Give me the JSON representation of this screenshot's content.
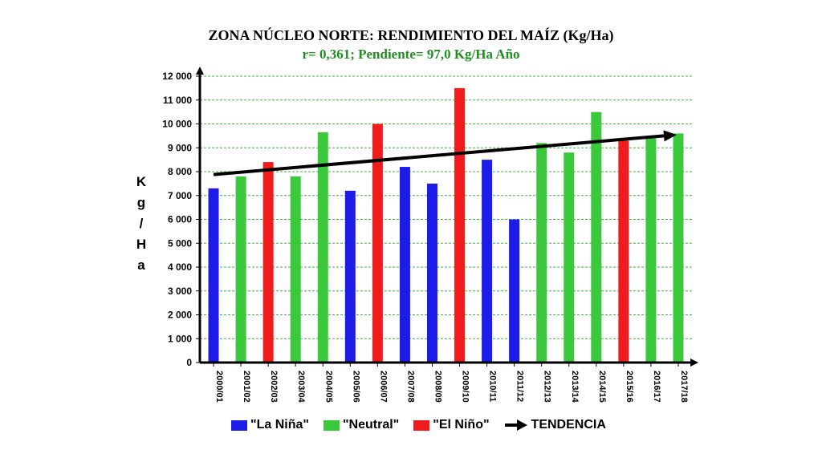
{
  "title": "ZONA NÚCLEO NORTE: RENDIMIENTO DEL MAÍZ  (Kg/Ha)",
  "subtitle": "r= 0,361; Pendiente= 97,0 Kg/Ha Año",
  "chart_data": {
    "type": "bar",
    "title": "ZONA NÚCLEO NORTE: RENDIMIENTO DEL MAÍZ  (Kg/Ha)",
    "subtitle": "r= 0,361; Pendiente= 97,0 Kg/Ha Año",
    "ylabel": "Kg/Ha",
    "ylabel_chars": [
      "K",
      "g",
      "/",
      "H",
      "a"
    ],
    "ylim": [
      0,
      12000
    ],
    "yticks": [
      0,
      1000,
      2000,
      3000,
      4000,
      5000,
      6000,
      7000,
      8000,
      9000,
      10000,
      11000,
      12000
    ],
    "ytick_labels": [
      "0",
      "1 000",
      "2 000",
      "3 000",
      "4 000",
      "5 000",
      "6 000",
      "7 000",
      "8 000",
      "9 000",
      "10 000",
      "11 000",
      "12 000"
    ],
    "grid": true,
    "categories": [
      "2000/01",
      "2001/02",
      "2002/03",
      "2003/04",
      "2004/05",
      "2005/06",
      "2006/07",
      "2007/08",
      "2008/09",
      "2009/10",
      "2010/11",
      "2011/12",
      "2012/13",
      "2013/14",
      "2014/15",
      "2015/16",
      "2016/17",
      "2017/18"
    ],
    "values": [
      7300,
      7800,
      8400,
      7800,
      9650,
      7200,
      10000,
      8200,
      7500,
      11500,
      8500,
      6000,
      9200,
      8800,
      10500,
      9300,
      9400,
      9600
    ],
    "phase": [
      "La Niña",
      "Neutral",
      "El Niño",
      "Neutral",
      "Neutral",
      "La Niña",
      "El Niño",
      "La Niña",
      "La Niña",
      "El Niño",
      "La Niña",
      "La Niña",
      "Neutral",
      "Neutral",
      "Neutral",
      "El Niño",
      "Neutral",
      "Neutral"
    ],
    "phase_colors": {
      "La Niña": "#1c1ce6",
      "Neutral": "#3cc83c",
      "El Niño": "#ee1c1c"
    },
    "trend": {
      "label": "TENDENCIA",
      "start": 7880,
      "end": 9530
    },
    "legend": [
      {
        "label": "\"La Niña\"",
        "color": "#1c1ce6"
      },
      {
        "label": "\"Neutral\"",
        "color": "#3cc83c"
      },
      {
        "label": "\"El Niño\"",
        "color": "#ee1c1c"
      },
      {
        "label": "TENDENCIA",
        "color": "#000000",
        "icon": "arrow-icon"
      }
    ],
    "legend_position": "bottom"
  }
}
